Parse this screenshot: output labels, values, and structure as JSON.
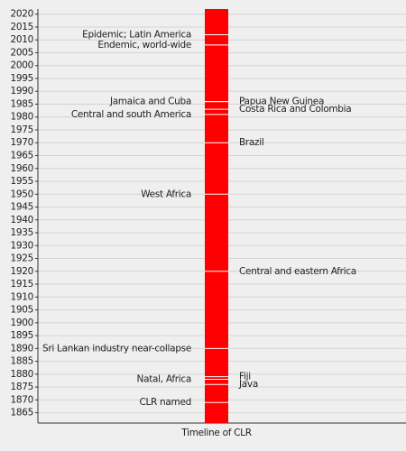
{
  "chart_data": {
    "type": "timeline",
    "xlabel": "Timeline of CLR",
    "ylim": [
      1861,
      2022
    ],
    "yticks": [
      1865,
      1870,
      1875,
      1880,
      1885,
      1890,
      1895,
      1900,
      1905,
      1910,
      1915,
      1920,
      1925,
      1930,
      1935,
      1940,
      1945,
      1950,
      1955,
      1960,
      1965,
      1970,
      1975,
      1980,
      1985,
      1990,
      1995,
      2000,
      2005,
      2010,
      2015,
      2020
    ],
    "grid": true,
    "color": "#ff0000",
    "events": [
      {
        "year": 2012,
        "label": "Epidemic; Latin America",
        "side": "left"
      },
      {
        "year": 2008,
        "label": "Endemic, world-wide",
        "side": "left"
      },
      {
        "year": 1986,
        "label": "Jamaica and Cuba",
        "side": "left"
      },
      {
        "year": 1986,
        "label": "Papua New Guinea",
        "side": "right"
      },
      {
        "year": 1983,
        "label": "Costa Rica and Colombia",
        "side": "right"
      },
      {
        "year": 1981,
        "label": "Central and south America",
        "side": "left"
      },
      {
        "year": 1970,
        "label": "Brazil",
        "side": "right"
      },
      {
        "year": 1950,
        "label": "West Africa",
        "side": "left"
      },
      {
        "year": 1920,
        "label": "Central and eastern Africa",
        "side": "right"
      },
      {
        "year": 1890,
        "label": "Sri Lankan industry near-collapse",
        "side": "left"
      },
      {
        "year": 1879,
        "label": "Fiji",
        "side": "right"
      },
      {
        "year": 1878,
        "label": "Natal, Africa",
        "side": "left"
      },
      {
        "year": 1876,
        "label": "Java",
        "side": "right"
      },
      {
        "year": 1869,
        "label": "CLR named",
        "side": "left"
      }
    ]
  }
}
